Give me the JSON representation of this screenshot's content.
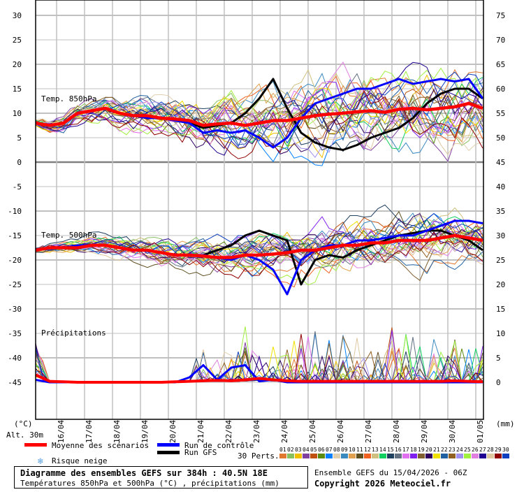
{
  "chart_data": {
    "type": "line",
    "title": "Diagramme des ensembles GEFS sur 384h : 40.5N 18E",
    "subtitle": "Températures 850hPa et 500hPa (°C) , précipitations (mm)",
    "run_info": "Ensemble GEFS du 15/04/2026 - 06Z",
    "copyright": "Copyright 2026 Meteociel.fr",
    "left_unit": "(°C)",
    "right_unit": "(mm)",
    "altitude": "Alt. 30m",
    "left_ticks": [
      "30",
      "25",
      "20",
      "15",
      "10",
      "5",
      "0",
      "-5",
      "-10",
      "-15",
      "-20",
      "-25",
      "-30",
      "-35",
      "-40",
      "-45"
    ],
    "right_ticks": [
      "75",
      "70",
      "65",
      "60",
      "55",
      "50",
      "45",
      "40",
      "35",
      "30",
      "25",
      "20",
      "15",
      "10",
      "5",
      "0"
    ],
    "date_labels": [
      "16/04",
      "17/04",
      "18/04",
      "19/04",
      "20/04",
      "21/04",
      "22/04",
      "23/04",
      "24/04",
      "25/04",
      "26/04",
      "27/04",
      "28/04",
      "29/04",
      "30/04",
      "01/05"
    ],
    "panels": {
      "t850": {
        "label": "Temp. 850hPa",
        "unit": "°C"
      },
      "t500": {
        "label": "Temp. 500hPa",
        "unit": "°C"
      },
      "precip": {
        "label": "Précipitations",
        "unit": "mm"
      }
    },
    "time_step_hours": 12,
    "x_range_hours": [
      0,
      384
    ],
    "series": {
      "t850_mean": [
        8,
        7.5,
        8,
        10,
        10.5,
        11,
        10,
        9.5,
        9.5,
        9,
        8.8,
        8.5,
        7.5,
        7.8,
        8,
        7.5,
        8,
        8.5,
        8.5,
        9,
        9.5,
        9.8,
        10,
        10.3,
        10.5,
        10.2,
        10.8,
        11,
        10.7,
        11,
        11.3,
        12,
        11
      ],
      "t850_control": [
        8,
        7.5,
        8,
        10,
        10.5,
        11,
        10,
        9.5,
        9,
        9,
        8.5,
        8,
        6,
        6.5,
        6,
        6.5,
        5,
        3,
        5,
        9,
        12,
        13,
        14,
        15,
        15,
        16,
        17,
        16,
        16.5,
        17,
        16.5,
        17,
        13
      ],
      "t850_gfs": [
        8,
        7.5,
        8,
        10,
        10.5,
        11,
        10,
        9.5,
        9,
        9,
        8.5,
        8,
        7,
        7.5,
        8,
        10,
        13,
        17,
        11,
        6,
        4,
        3,
        2.5,
        3.5,
        5,
        6,
        7,
        9,
        12,
        14,
        15,
        15,
        13
      ],
      "t500_mean": [
        -18,
        -17.5,
        -17.5,
        -17.5,
        -17,
        -17,
        -17.5,
        -18,
        -18,
        -18.5,
        -19,
        -19,
        -19.2,
        -19.5,
        -19.5,
        -19,
        -19,
        -18.8,
        -18.5,
        -18,
        -18,
        -17.5,
        -17,
        -17,
        -16.5,
        -16.5,
        -16,
        -16,
        -16,
        -15.5,
        -15,
        -15.5,
        -16
      ],
      "t500_control": [
        -18,
        -17.5,
        -17.5,
        -17,
        -17,
        -17,
        -17.5,
        -18,
        -18,
        -18.5,
        -19,
        -19,
        -19,
        -19.5,
        -20,
        -19,
        -20,
        -22,
        -27,
        -20,
        -18,
        -17,
        -17,
        -16,
        -16,
        -15.5,
        -15,
        -15,
        -14,
        -13,
        -12,
        -12,
        -12.5
      ],
      "t500_gfs": [
        -18,
        -17.5,
        -17.5,
        -17,
        -17,
        -17,
        -17.5,
        -18,
        -18,
        -18.5,
        -19,
        -19,
        -19,
        -18,
        -17,
        -15,
        -14,
        -15,
        -16,
        -25,
        -20,
        -19,
        -19.5,
        -18,
        -17,
        -16,
        -15,
        -14.5,
        -14,
        -14,
        -15,
        -16,
        -18
      ],
      "precip_mean": [
        1.5,
        0.2,
        0.1,
        0,
        0,
        0,
        0,
        0,
        0,
        0,
        0.1,
        0.2,
        0.3,
        0.4,
        0.3,
        0.5,
        0.8,
        0.5,
        0.3,
        0.2,
        0.2,
        0.2,
        0.2,
        0.2,
        0.2,
        0.2,
        0.2,
        0.2,
        0.2,
        0.2,
        0.3,
        0.2,
        0.1
      ],
      "precip_control": [
        0.5,
        0,
        0,
        0,
        0,
        0,
        0,
        0,
        0,
        0,
        0,
        1,
        3.5,
        0.5,
        3,
        3.5,
        0.2,
        0.5,
        0,
        0,
        0,
        0,
        0,
        0,
        0,
        0,
        0,
        0,
        0,
        0,
        0,
        0,
        0
      ]
    },
    "legend": {
      "mean": {
        "label": "Moyenne des scénarios",
        "color": "#ff0000"
      },
      "control": {
        "label": "Run de contrôle",
        "color": "#0000ff"
      },
      "gfs": {
        "label": "Run GFS",
        "color": "#000000"
      },
      "snow": {
        "label": "Risque neige"
      },
      "perts_label": "30 Perts.",
      "members": [
        {
          "id": "01",
          "color": "#e07830"
        },
        {
          "id": "02",
          "color": "#88c060"
        },
        {
          "id": "03",
          "color": "#f0c000"
        },
        {
          "id": "04",
          "color": "#8040a0"
        },
        {
          "id": "05",
          "color": "#c05010"
        },
        {
          "id": "06",
          "color": "#5a8a10"
        },
        {
          "id": "07",
          "color": "#0080ff"
        },
        {
          "id": "08",
          "color": "#e0d0b0"
        },
        {
          "id": "09",
          "color": "#3a8ac0"
        },
        {
          "id": "10",
          "color": "#e0a050"
        },
        {
          "id": "11",
          "color": "#605020"
        },
        {
          "id": "12",
          "color": "#f06020"
        },
        {
          "id": "13",
          "color": "#d0c080"
        },
        {
          "id": "14",
          "color": "#10d060"
        },
        {
          "id": "15",
          "color": "#204060"
        },
        {
          "id": "16",
          "color": "#607080"
        },
        {
          "id": "17",
          "color": "#e070f0"
        },
        {
          "id": "18",
          "color": "#8020f0"
        },
        {
          "id": "19",
          "color": "#806030"
        },
        {
          "id": "20",
          "color": "#300060"
        },
        {
          "id": "21",
          "color": "#f0e000"
        },
        {
          "id": "22",
          "color": "#2060a0"
        },
        {
          "id": "23",
          "color": "#906020"
        },
        {
          "id": "24",
          "color": "#a090f0"
        },
        {
          "id": "25",
          "color": "#a0f040"
        },
        {
          "id": "26",
          "color": "#e080e0"
        },
        {
          "id": "27",
          "color": "#200090"
        },
        {
          "id": "28",
          "color": "#e0c8a0"
        },
        {
          "id": "29",
          "color": "#900000"
        },
        {
          "id": "30",
          "color": "#1040c0"
        }
      ]
    }
  }
}
